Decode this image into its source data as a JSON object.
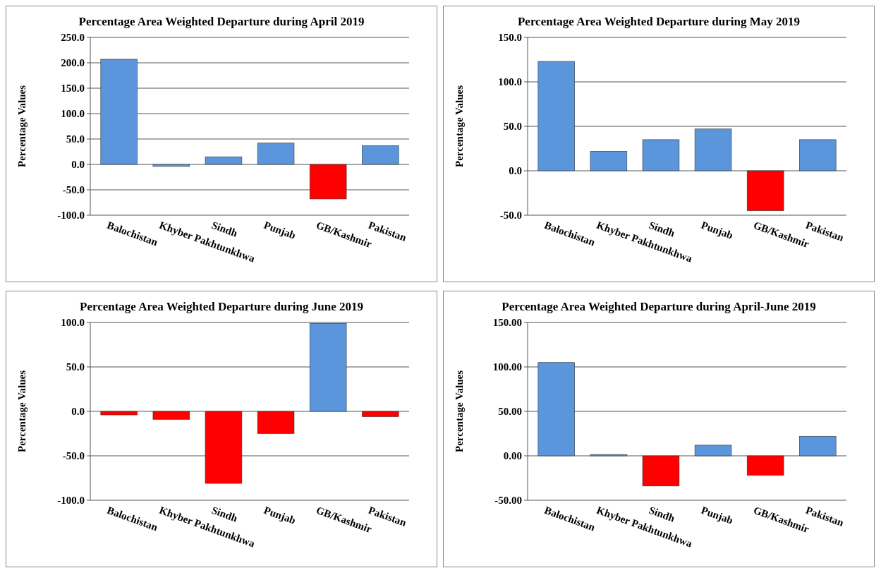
{
  "chart_data": [
    {
      "type": "bar",
      "title": "Percentage Area Weighted Departure during April 2019",
      "ylabel": "Percentage Values",
      "categories": [
        "Balochistan",
        "Khyber Pakhtunkhwa",
        "Sindh",
        "Punjab",
        "GB/Kashmir",
        "Pakistan"
      ],
      "values": [
        207,
        -4,
        15,
        42,
        -68,
        37
      ],
      "colors": [
        "#5b96dc",
        "#5b96dc",
        "#5b96dc",
        "#5b96dc",
        "#ff0000",
        "#5b96dc"
      ],
      "ylim": [
        -100,
        250
      ],
      "yticks": [
        {
          "value": -100,
          "label": "-100.0"
        },
        {
          "value": -50,
          "label": "-50.0"
        },
        {
          "value": 0,
          "label": "0.0"
        },
        {
          "value": 50,
          "label": "50.0"
        },
        {
          "value": 100,
          "label": "100.0"
        },
        {
          "value": 150,
          "label": "150.0"
        },
        {
          "value": 200,
          "label": "200.0"
        },
        {
          "value": 250,
          "label": "250.0"
        }
      ],
      "grid": "y"
    },
    {
      "type": "bar",
      "title": "Percentage Area Weighted Departure during May 2019",
      "ylabel": "Percentage Values",
      "categories": [
        "Balochistan",
        "Khyber Pakhtunkhwa",
        "Sindh",
        "Punjab",
        "GB/Kashmir",
        "Pakistan"
      ],
      "values": [
        123,
        22,
        35,
        47,
        -45,
        35
      ],
      "colors": [
        "#5b96dc",
        "#5b96dc",
        "#5b96dc",
        "#5b96dc",
        "#ff0000",
        "#5b96dc"
      ],
      "ylim": [
        -50,
        150
      ],
      "yticks": [
        {
          "value": -50,
          "label": "-50.0"
        },
        {
          "value": 0,
          "label": "0.0"
        },
        {
          "value": 50,
          "label": "50.0"
        },
        {
          "value": 100,
          "label": "100.0"
        },
        {
          "value": 150,
          "label": "150.0"
        }
      ],
      "grid": "y"
    },
    {
      "type": "bar",
      "title": "Percentage Area Weighted Departure during June 2019",
      "ylabel": "Percentage Values",
      "categories": [
        "Balochistan",
        "Khyber Pakhtunkhwa",
        "Sindh",
        "Punjab",
        "GB/Kashmir",
        "Pakistan"
      ],
      "values": [
        -4,
        -9,
        -81,
        -25,
        99,
        -6
      ],
      "colors": [
        "#ff0000",
        "#ff0000",
        "#ff0000",
        "#ff0000",
        "#5b96dc",
        "#ff0000"
      ],
      "ylim": [
        -100,
        100
      ],
      "yticks": [
        {
          "value": -100,
          "label": "-100.0"
        },
        {
          "value": -50,
          "label": "-50.0"
        },
        {
          "value": 0,
          "label": "0.0"
        },
        {
          "value": 50,
          "label": "50.0"
        },
        {
          "value": 100,
          "label": "100.0"
        }
      ],
      "grid": "y"
    },
    {
      "type": "bar",
      "title": "Percentage Area Weighted Departure during April-June 2019",
      "ylabel": "Percentage Values",
      "categories": [
        "Balochistan",
        "Khyber Pakhtunkhwa",
        "Sindh",
        "Punjab",
        "GB/Kashmir",
        "Pakistan"
      ],
      "values": [
        105,
        1.5,
        -34,
        12,
        -22,
        22
      ],
      "colors": [
        "#5b96dc",
        "#5b96dc",
        "#ff0000",
        "#5b96dc",
        "#ff0000",
        "#5b96dc"
      ],
      "ylim": [
        -50,
        150
      ],
      "yticks": [
        {
          "value": -50,
          "label": "-50.00"
        },
        {
          "value": 0,
          "label": "0.00"
        },
        {
          "value": 50,
          "label": "50.00"
        },
        {
          "value": 100,
          "label": "100.00"
        },
        {
          "value": 150,
          "label": "150.00"
        }
      ],
      "grid": "y"
    }
  ]
}
